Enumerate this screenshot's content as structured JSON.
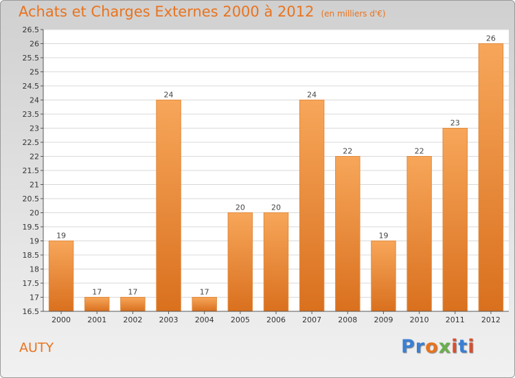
{
  "chart_data": {
    "type": "bar",
    "title": "Achats et Charges Externes 2000 à 2012",
    "unit_label": "(en milliers d'€)",
    "categories": [
      "2000",
      "2001",
      "2002",
      "2003",
      "2004",
      "2005",
      "2006",
      "2007",
      "2008",
      "2009",
      "2010",
      "2011",
      "2012"
    ],
    "values": [
      19,
      17,
      17,
      24,
      17,
      20,
      20,
      24,
      22,
      19,
      22,
      23,
      26
    ],
    "ylim": [
      16.5,
      26.5
    ],
    "yticks": [
      "16.5",
      "17",
      "17.5",
      "18",
      "18.5",
      "19",
      "19.5",
      "20",
      "20.5",
      "21",
      "21.5",
      "22",
      "22.5",
      "23",
      "23.5",
      "24",
      "24.5",
      "25",
      "25.5",
      "26",
      "26.5"
    ],
    "xlabel": "",
    "ylabel": "",
    "grid": true,
    "bar_color": "#f0883a"
  },
  "footer": {
    "commune": "AUTY",
    "logo": "Proxiti"
  }
}
